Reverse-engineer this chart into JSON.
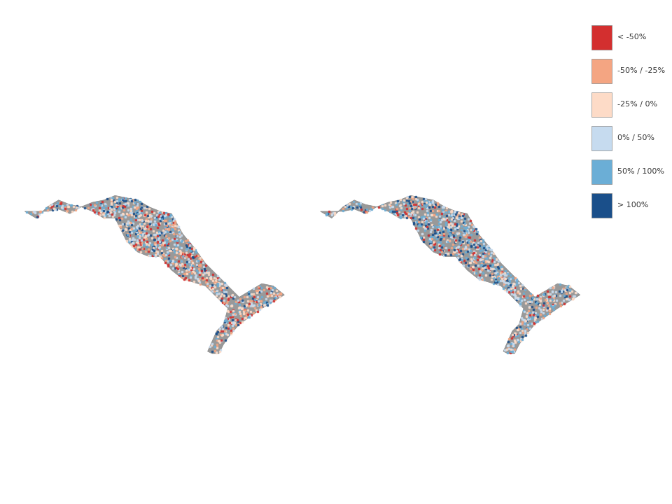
{
  "title": "",
  "legend_labels": [
    "< -50%",
    "-50% / -25%",
    "-25% / 0%",
    "0% / 50%",
    "50% / 100%",
    "> 100%"
  ],
  "legend_colors": [
    "#d32f2f",
    "#f4a582",
    "#fddbc7",
    "#c6dbef",
    "#6baed6",
    "#1a4f8a"
  ],
  "background_color": "#ffffff",
  "map_background": "#999999",
  "figsize": [
    9.6,
    7.2
  ],
  "dpi": 100
}
